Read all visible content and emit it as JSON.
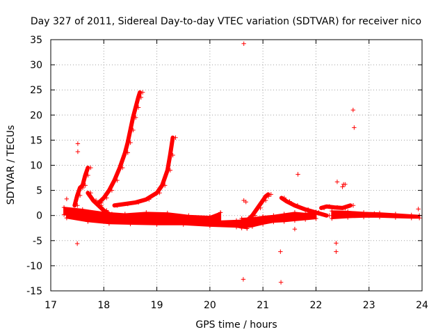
{
  "chart_data": {
    "type": "scatter",
    "title": "Day 327 of 2011, Sidereal Day-to-day VTEC variation (SDTVAR) for receiver nico",
    "xlabel": "GPS time / hours",
    "ylabel": "SDTVAR / TECUs",
    "xlim": [
      17,
      24
    ],
    "ylim": [
      -15,
      35
    ],
    "xticks": [
      17,
      18,
      19,
      20,
      21,
      22,
      23,
      24
    ],
    "yticks": [
      -15,
      -10,
      -5,
      0,
      5,
      10,
      15,
      20,
      25,
      30,
      35
    ],
    "grid": true,
    "marker": "+",
    "color": "#ff0000",
    "series": [
      {
        "name": "baseline band upper",
        "kind": "band",
        "x": [
          17.25,
          17.6,
          18.0,
          18.4,
          18.8,
          19.2,
          19.6,
          20.0,
          20.2
        ],
        "lo": [
          0.2,
          -0.3,
          -0.8,
          -1.1,
          -1.2,
          -1.3,
          -1.5,
          -1.6,
          -1.4
        ],
        "hi": [
          1.6,
          1.2,
          0.6,
          0.3,
          0.6,
          0.5,
          0.0,
          -0.2,
          0.6
        ]
      },
      {
        "name": "baseline band lower",
        "kind": "band",
        "x": [
          17.3,
          17.7,
          18.1,
          18.5,
          19.0,
          19.5,
          20.0,
          20.5,
          20.7
        ],
        "lo": [
          -0.5,
          -1.2,
          -1.6,
          -1.7,
          -1.8,
          -1.8,
          -2.1,
          -2.3,
          -2.6
        ],
        "hi": [
          0.8,
          -0.2,
          -0.5,
          -0.6,
          -0.8,
          -1.0,
          -1.2,
          -1.0,
          -0.9
        ]
      },
      {
        "name": "middle band",
        "kind": "band",
        "x": [
          20.6,
          20.8,
          21.0,
          21.2,
          21.4,
          21.6,
          21.8,
          22.0
        ],
        "lo": [
          -2.5,
          -2.2,
          -1.7,
          -1.3,
          -1.2,
          -1.0,
          -0.8,
          -0.6
        ],
        "hi": [
          -0.6,
          -0.5,
          -0.2,
          0.0,
          0.3,
          0.6,
          0.4,
          0.7
        ]
      },
      {
        "name": "late band",
        "kind": "band",
        "x": [
          22.3,
          22.6,
          22.9,
          23.2,
          23.5,
          23.8,
          23.95
        ],
        "lo": [
          -0.6,
          -0.4,
          -0.3,
          -0.3,
          -0.4,
          -0.5,
          -0.5
        ],
        "hi": [
          0.9,
          0.8,
          0.6,
          0.5,
          0.3,
          0.1,
          0.0
        ]
      },
      {
        "name": "upper arc 1",
        "kind": "curve",
        "x": [
          17.9,
          18.0,
          18.1,
          18.2,
          18.3,
          18.4,
          18.45,
          18.5,
          18.55,
          18.6,
          18.65,
          18.68
        ],
        "y": [
          2.5,
          3.5,
          5.0,
          7.0,
          9.5,
          12.5,
          14.5,
          17.0,
          19.5,
          21.5,
          23.5,
          24.5
        ]
      },
      {
        "name": "upper arc 2",
        "kind": "curve",
        "x": [
          18.2,
          18.4,
          18.6,
          18.8,
          19.0,
          19.1,
          19.2,
          19.25,
          19.3
        ],
        "y": [
          2.0,
          2.3,
          2.6,
          3.2,
          4.5,
          6.0,
          9.0,
          12.0,
          15.5
        ]
      },
      {
        "name": "decay 1",
        "kind": "curve",
        "x": [
          17.7,
          17.8,
          17.9,
          18.0,
          18.1,
          18.2,
          18.3
        ],
        "y": [
          4.5,
          3.0,
          2.0,
          1.0,
          0.3,
          -0.2,
          -0.6
        ]
      },
      {
        "name": "rise 17.5",
        "kind": "curve",
        "x": [
          17.45,
          17.5,
          17.55,
          17.6,
          17.65,
          17.7
        ],
        "y": [
          2.0,
          4.0,
          5.5,
          6.0,
          8.0,
          9.5
        ]
      },
      {
        "name": "bump 21",
        "kind": "curve",
        "x": [
          20.7,
          20.8,
          20.9,
          21.0,
          21.05,
          21.1
        ],
        "y": [
          -1.0,
          0.0,
          1.5,
          3.0,
          3.8,
          4.2
        ]
      },
      {
        "name": "bump 21.35",
        "kind": "curve",
        "x": [
          21.35,
          21.45,
          21.6,
          21.8,
          22.0,
          22.2
        ],
        "y": [
          3.5,
          2.8,
          2.0,
          1.2,
          0.6,
          0.0
        ]
      },
      {
        "name": "bump 22.5",
        "kind": "curve",
        "x": [
          22.1,
          22.2,
          22.35,
          22.5,
          22.65
        ],
        "y": [
          1.5,
          1.8,
          1.6,
          1.5,
          2.0
        ]
      },
      {
        "name": "outliers",
        "kind": "points",
        "x": [
          17.51,
          17.51,
          17.5,
          20.64,
          20.63,
          20.68,
          20.64,
          21.34,
          21.33,
          21.66,
          22.38,
          22.38,
          22.4,
          22.5,
          22.52,
          22.55,
          22.7,
          22.72,
          23.93,
          17.3,
          21.6,
          23.1
        ],
        "y": [
          14.3,
          12.7,
          -5.6,
          34.2,
          -12.7,
          2.7,
          3.0,
          -13.3,
          -7.2,
          8.2,
          -5.5,
          -7.2,
          6.7,
          5.7,
          6.2,
          6.2,
          21.0,
          17.5,
          1.3,
          3.3,
          -2.7,
          0.4
        ]
      }
    ]
  }
}
